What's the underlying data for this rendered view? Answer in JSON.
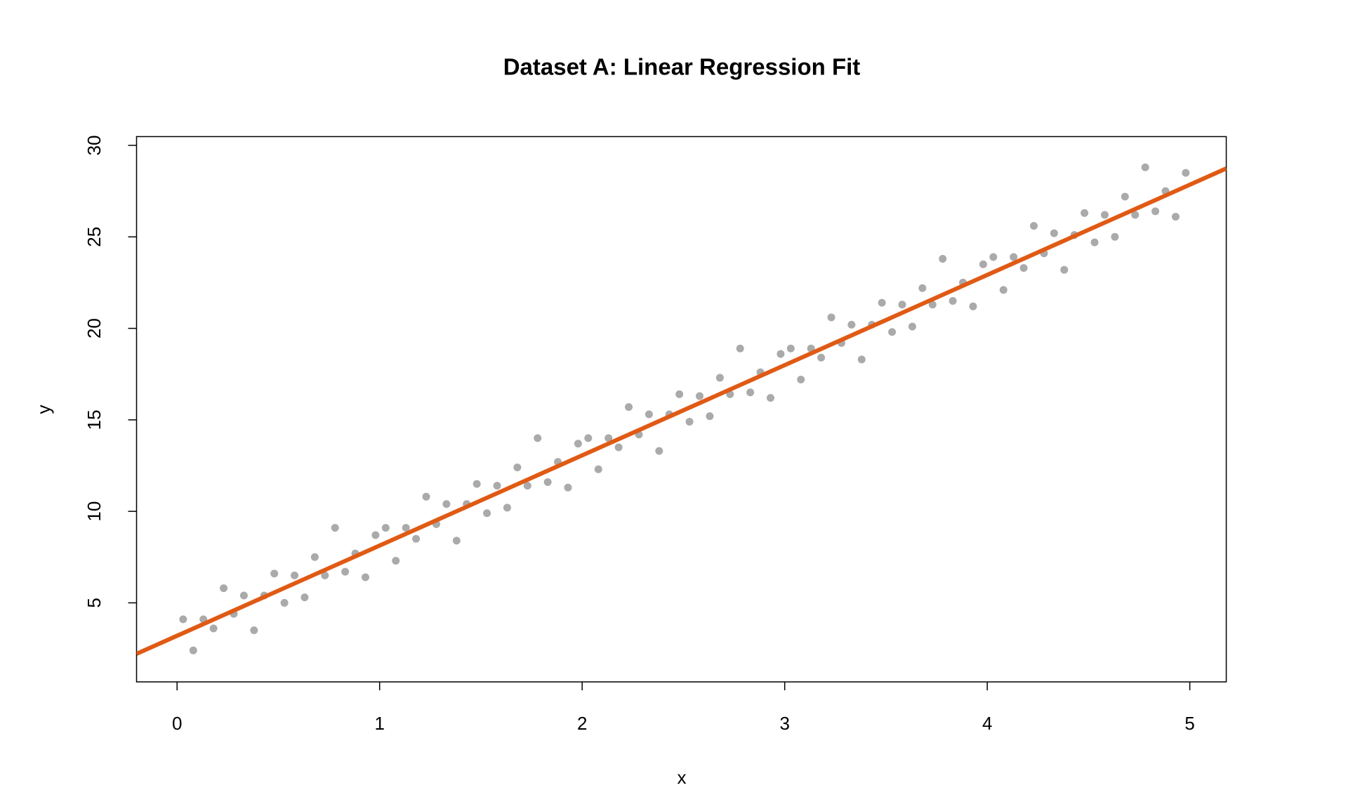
{
  "chart_data": {
    "type": "scatter",
    "title": "Dataset A: Linear Regression Fit",
    "x_label": "x",
    "y_label": "y",
    "x": [
      0.03,
      0.08,
      0.13,
      0.18,
      0.23,
      0.28,
      0.33,
      0.38,
      0.43,
      0.48,
      0.53,
      0.58,
      0.63,
      0.68,
      0.73,
      0.78,
      0.83,
      0.88,
      0.93,
      0.98,
      1.03,
      1.08,
      1.13,
      1.18,
      1.23,
      1.28,
      1.33,
      1.38,
      1.43,
      1.48,
      1.53,
      1.58,
      1.63,
      1.68,
      1.73,
      1.78,
      1.83,
      1.88,
      1.93,
      1.98,
      2.03,
      2.08,
      2.13,
      2.18,
      2.23,
      2.28,
      2.33,
      2.38,
      2.43,
      2.48,
      2.53,
      2.58,
      2.63,
      2.68,
      2.73,
      2.78,
      2.83,
      2.88,
      2.93,
      2.98,
      3.03,
      3.08,
      3.13,
      3.18,
      3.23,
      3.28,
      3.33,
      3.38,
      3.43,
      3.48,
      3.53,
      3.58,
      3.63,
      3.68,
      3.73,
      3.78,
      3.83,
      3.88,
      3.93,
      3.98,
      4.03,
      4.08,
      4.13,
      4.18,
      4.23,
      4.28,
      4.33,
      4.38,
      4.43,
      4.48,
      4.53,
      4.58,
      4.63,
      4.68,
      4.73,
      4.78,
      4.83,
      4.88,
      4.93,
      4.98
    ],
    "values": [
      4.1,
      2.4,
      4.1,
      3.6,
      5.8,
      4.4,
      5.4,
      3.5,
      5.4,
      6.6,
      5.0,
      6.5,
      5.3,
      7.5,
      6.5,
      9.1,
      6.7,
      7.7,
      6.4,
      8.7,
      9.1,
      7.3,
      9.1,
      8.5,
      10.8,
      9.3,
      10.4,
      8.4,
      10.4,
      11.5,
      9.9,
      11.4,
      10.2,
      12.4,
      11.4,
      14.0,
      11.6,
      12.7,
      11.3,
      13.7,
      14.0,
      12.3,
      14.0,
      13.5,
      15.7,
      14.2,
      15.3,
      13.3,
      15.3,
      16.4,
      14.9,
      16.3,
      15.2,
      17.3,
      16.4,
      18.9,
      16.5,
      17.6,
      16.2,
      18.6,
      18.9,
      17.2,
      18.9,
      18.4,
      20.6,
      19.2,
      20.2,
      18.3,
      20.2,
      21.4,
      19.8,
      21.3,
      20.1,
      22.2,
      21.3,
      23.8,
      21.5,
      22.5,
      21.2,
      23.5,
      23.9,
      22.1,
      23.9,
      23.3,
      25.6,
      24.1,
      25.2,
      23.2,
      25.1,
      26.3,
      24.7,
      26.2,
      25.0,
      27.2,
      26.2,
      28.8,
      26.4,
      27.5,
      26.1,
      28.5
    ],
    "color": "#aaaaaa",
    "fit": {
      "intercept": 3.2,
      "slope": 4.93,
      "color": "#e05a14"
    },
    "xlim": [
      -0.2,
      5.18
    ],
    "ylim": [
      0.68,
      30.48
    ],
    "xticks": [
      0,
      1,
      2,
      3,
      4,
      5
    ],
    "yticks": [
      5,
      10,
      15,
      20,
      25,
      30
    ]
  }
}
